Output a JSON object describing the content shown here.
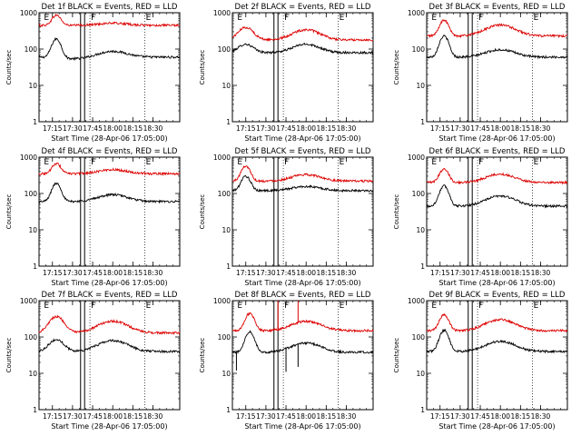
{
  "chart_data": [
    {
      "type": "line",
      "title": "Det 1f BLACK = Events, RED = LLD",
      "ylabel": "Counts/sec",
      "xlabel": "Start Time (28-Apr-06 17:05:00)",
      "yscale": "log",
      "ylim": [
        1,
        1000
      ],
      "xlim_minutes": [
        0,
        105
      ],
      "x_ticks_minutes": [
        10,
        25,
        40,
        55,
        70,
        85
      ],
      "x_tick_labels": [
        "17:15",
        "17:30",
        "17:45",
        "18:00",
        "18:15",
        "18:30"
      ],
      "y_ticks": [
        1,
        10,
        100,
        1000
      ],
      "y_tick_labels": [
        "1",
        "10",
        "100",
        "1000"
      ],
      "markers": [
        {
          "label": "E",
          "minute": 3
        },
        {
          "label": "F",
          "minute": 38
        },
        {
          "label": "E",
          "minute": 79
        }
      ],
      "box_minutes": [
        31,
        34
      ],
      "series": [
        {
          "name": "Events",
          "color": "#000000",
          "base": 60,
          "bumps": [
            {
              "c": 13,
              "h": 3.3,
              "w": 3
            },
            {
              "c": 27,
              "h": 0.9,
              "w": 10
            },
            {
              "c": 55,
              "h": 1.45,
              "w": 10
            }
          ]
        },
        {
          "name": "LLD",
          "color": "#dd0000",
          "base": 450,
          "bumps": [
            {
              "c": 13,
              "h": 1.9,
              "w": 3
            },
            {
              "c": 27,
              "h": 1,
              "w": 10
            },
            {
              "c": 55,
              "h": 1.15,
              "w": 10
            }
          ]
        }
      ]
    },
    {
      "type": "line",
      "title": "Det 2f BLACK = Events, RED = LLD",
      "ylabel": "Counts/sec",
      "xlabel": "Start Time (28-Apr-06 17:05:00)",
      "yscale": "log",
      "ylim": [
        1,
        1000
      ],
      "xlim_minutes": [
        0,
        105
      ],
      "x_ticks_minutes": [
        10,
        25,
        40,
        55,
        70,
        85
      ],
      "x_tick_labels": [
        "17:15",
        "17:30",
        "17:45",
        "18:00",
        "18:15",
        "18:30"
      ],
      "y_ticks": [
        1,
        10,
        100,
        1000
      ],
      "y_tick_labels": [
        "1",
        "10",
        "100",
        "1000"
      ],
      "markers": [
        {
          "label": "E",
          "minute": 3
        },
        {
          "label": "F",
          "minute": 38
        },
        {
          "label": "E",
          "minute": 79
        }
      ],
      "box_minutes": [
        31,
        34
      ],
      "series": [
        {
          "name": "Events",
          "color": "#000000",
          "base": 80,
          "bumps": [
            {
              "c": 10,
              "h": 1.7,
              "w": 5
            },
            {
              "c": 55,
              "h": 1.7,
              "w": 9
            }
          ]
        },
        {
          "name": "LLD",
          "color": "#dd0000",
          "base": 180,
          "bumps": [
            {
              "c": 10,
              "h": 2.2,
              "w": 5
            },
            {
              "c": 55,
              "h": 1.9,
              "w": 9
            }
          ]
        }
      ]
    },
    {
      "type": "line",
      "title": "Det 3f BLACK = Events, RED = LLD",
      "ylabel": "Counts/sec",
      "xlabel": "Start Time (28-Apr-06 17:05:00)",
      "yscale": "log",
      "ylim": [
        1,
        1000
      ],
      "xlim_minutes": [
        0,
        105
      ],
      "x_ticks_minutes": [
        10,
        25,
        40,
        55,
        70,
        85
      ],
      "x_tick_labels": [
        "17:15",
        "17:30",
        "17:45",
        "18:00",
        "18:15",
        "18:30"
      ],
      "y_ticks": [
        1,
        10,
        100,
        1000
      ],
      "y_tick_labels": [
        "1",
        "10",
        "100",
        "1000"
      ],
      "markers": [
        {
          "label": "E",
          "minute": 3
        },
        {
          "label": "F",
          "minute": 38
        },
        {
          "label": "E",
          "minute": 79
        }
      ],
      "box_minutes": [
        31,
        34
      ],
      "series": [
        {
          "name": "Events",
          "color": "#000000",
          "base": 60,
          "bumps": [
            {
              "c": 13,
              "h": 3.8,
              "w": 3
            },
            {
              "c": 55,
              "h": 1.6,
              "w": 10
            }
          ]
        },
        {
          "name": "LLD",
          "color": "#dd0000",
          "base": 230,
          "bumps": [
            {
              "c": 13,
              "h": 2.7,
              "w": 3
            },
            {
              "c": 55,
              "h": 2,
              "w": 10
            }
          ]
        }
      ]
    },
    {
      "type": "line",
      "title": "Det 4f BLACK = Events, RED = LLD",
      "ylabel": "Counts/sec",
      "xlabel": "Start Time (28-Apr-06 17:05:00)",
      "yscale": "log",
      "ylim": [
        1,
        1000
      ],
      "xlim_minutes": [
        0,
        105
      ],
      "x_ticks_minutes": [
        10,
        25,
        40,
        55,
        70,
        85
      ],
      "x_tick_labels": [
        "17:15",
        "17:30",
        "17:45",
        "18:00",
        "18:15",
        "18:30"
      ],
      "y_ticks": [
        1,
        10,
        100,
        1000
      ],
      "y_tick_labels": [
        "1",
        "10",
        "100",
        "1000"
      ],
      "markers": [
        {
          "label": "E",
          "minute": 3
        },
        {
          "label": "F",
          "minute": 38
        },
        {
          "label": "E",
          "minute": 79
        }
      ],
      "box_minutes": [
        31,
        34
      ],
      "series": [
        {
          "name": "Events",
          "color": "#000000",
          "base": 60,
          "bumps": [
            {
              "c": 13,
              "h": 3.2,
              "w": 3
            },
            {
              "c": 55,
              "h": 1.55,
              "w": 10
            }
          ]
        },
        {
          "name": "LLD",
          "color": "#dd0000",
          "base": 350,
          "bumps": [
            {
              "c": 13,
              "h": 1.9,
              "w": 3
            },
            {
              "c": 55,
              "h": 1.3,
              "w": 10
            }
          ]
        }
      ]
    },
    {
      "type": "line",
      "title": "Det 5f BLACK = Events, RED = LLD",
      "ylabel": "Counts/sec",
      "xlabel": "Start Time (28-Apr-06 17:05:00)",
      "yscale": "log",
      "ylim": [
        1,
        1000
      ],
      "xlim_minutes": [
        0,
        105
      ],
      "x_ticks_minutes": [
        10,
        25,
        40,
        55,
        70,
        85
      ],
      "x_tick_labels": [
        "17:15",
        "17:30",
        "17:45",
        "18:00",
        "18:15",
        "18:30"
      ],
      "y_ticks": [
        1,
        10,
        100,
        1000
      ],
      "y_tick_labels": [
        "1",
        "10",
        "100",
        "1000"
      ],
      "markers": [
        {
          "label": "E",
          "minute": 3
        },
        {
          "label": "F",
          "minute": 38
        },
        {
          "label": "E",
          "minute": 79
        }
      ],
      "box_minutes": [
        31,
        34
      ],
      "series": [
        {
          "name": "Events",
          "color": "#000000",
          "base": 120,
          "bumps": [
            {
              "c": 10,
              "h": 2.5,
              "w": 3
            },
            {
              "c": 55,
              "h": 1.3,
              "w": 10
            }
          ]
        },
        {
          "name": "LLD",
          "color": "#dd0000",
          "base": 220,
          "bumps": [
            {
              "c": 10,
              "h": 2.6,
              "w": 3
            },
            {
              "c": 55,
              "h": 1.5,
              "w": 10
            }
          ]
        }
      ]
    },
    {
      "type": "line",
      "title": "Det 6f BLACK = Events, RED = LLD",
      "ylabel": "Counts/sec",
      "xlabel": "Start Time (28-Apr-06 17:05:00)",
      "yscale": "log",
      "ylim": [
        1,
        1000
      ],
      "xlim_minutes": [
        0,
        105
      ],
      "x_ticks_minutes": [
        10,
        25,
        40,
        55,
        70,
        85
      ],
      "x_tick_labels": [
        "17:15",
        "17:30",
        "17:45",
        "18:00",
        "18:15",
        "18:30"
      ],
      "y_ticks": [
        1,
        10,
        100,
        1000
      ],
      "y_tick_labels": [
        "1",
        "10",
        "100",
        "1000"
      ],
      "markers": [
        {
          "label": "E",
          "minute": 3
        },
        {
          "label": "F",
          "minute": 38
        },
        {
          "label": "E",
          "minute": 79
        }
      ],
      "box_minutes": [
        31,
        34
      ],
      "series": [
        {
          "name": "Events",
          "color": "#000000",
          "base": 45,
          "bumps": [
            {
              "c": 13,
              "h": 3.6,
              "w": 3
            },
            {
              "c": 55,
              "h": 1.9,
              "w": 10
            }
          ]
        },
        {
          "name": "LLD",
          "color": "#dd0000",
          "base": 200,
          "bumps": [
            {
              "c": 13,
              "h": 2.4,
              "w": 3
            },
            {
              "c": 55,
              "h": 1.7,
              "w": 10
            }
          ]
        }
      ]
    },
    {
      "type": "line",
      "title": "Det 7f BLACK = Events, RED = LLD",
      "ylabel": "Counts/sec",
      "xlabel": "Start Time (28-Apr-06 17:05:00)",
      "yscale": "log",
      "ylim": [
        1,
        1000
      ],
      "xlim_minutes": [
        0,
        105
      ],
      "x_ticks_minutes": [
        10,
        25,
        40,
        55,
        70,
        85
      ],
      "x_tick_labels": [
        "17:15",
        "17:30",
        "17:45",
        "18:00",
        "18:15",
        "18:30"
      ],
      "y_ticks": [
        1,
        10,
        100,
        1000
      ],
      "y_tick_labels": [
        "1",
        "10",
        "100",
        "1000"
      ],
      "markers": [
        {
          "label": "E",
          "minute": 3
        },
        {
          "label": "F",
          "minute": 38
        },
        {
          "label": "E",
          "minute": 79
        }
      ],
      "box_minutes": [
        31,
        34
      ],
      "series": [
        {
          "name": "Events",
          "color": "#000000",
          "base": 40,
          "bumps": [
            {
              "c": 13,
              "h": 2.1,
              "w": 5
            },
            {
              "c": 55,
              "h": 2,
              "w": 10
            }
          ]
        },
        {
          "name": "LLD",
          "color": "#dd0000",
          "base": 130,
          "bumps": [
            {
              "c": 13,
              "h": 2.8,
              "w": 5
            },
            {
              "c": 55,
              "h": 2.1,
              "w": 10
            }
          ]
        }
      ]
    },
    {
      "type": "line",
      "title": "Det 8f BLACK = Events, RED = LLD",
      "ylabel": "Counts/sec",
      "xlabel": "Start Time (28-Apr-06 17:05:00)",
      "yscale": "log",
      "ylim": [
        1,
        1000
      ],
      "xlim_minutes": [
        0,
        105
      ],
      "x_ticks_minutes": [
        10,
        25,
        40,
        55,
        70,
        85
      ],
      "x_tick_labels": [
        "17:15",
        "17:30",
        "17:45",
        "18:00",
        "18:15",
        "18:30"
      ],
      "y_ticks": [
        1,
        10,
        100,
        1000
      ],
      "y_tick_labels": [
        "1",
        "10",
        "100",
        "1000"
      ],
      "markers": [
        {
          "label": "E",
          "minute": 3
        },
        {
          "label": "F",
          "minute": 38
        },
        {
          "label": "E",
          "minute": 79
        }
      ],
      "box_minutes": [
        31,
        34
      ],
      "series": [
        {
          "name": "Events",
          "color": "#000000",
          "base": 38,
          "bumps": [
            {
              "c": 13,
              "h": 3.7,
              "w": 3
            },
            {
              "c": 55,
              "h": 1.8,
              "w": 10
            }
          ],
          "spikes": [
            {
              "m": 3,
              "v": 12
            },
            {
              "m": 40,
              "v": 11
            },
            {
              "m": 49,
              "v": 15
            }
          ]
        },
        {
          "name": "LLD",
          "color": "#dd0000",
          "base": 150,
          "bumps": [
            {
              "c": 13,
              "h": 3,
              "w": 3
            },
            {
              "c": 55,
              "h": 1.8,
              "w": 10
            }
          ],
          "spikes": [
            {
              "m": 34,
              "v": 1000
            },
            {
              "m": 49,
              "v": 1000
            }
          ]
        }
      ]
    },
    {
      "type": "line",
      "title": "Det 9f BLACK = Events, RED = LLD",
      "ylabel": "Counts/sec",
      "xlabel": "Start Time (28-Apr-06 17:05:00)",
      "yscale": "log",
      "ylim": [
        1,
        1000
      ],
      "xlim_minutes": [
        0,
        105
      ],
      "x_ticks_minutes": [
        10,
        25,
        40,
        55,
        70,
        85
      ],
      "x_tick_labels": [
        "17:15",
        "17:30",
        "17:45",
        "18:00",
        "18:15",
        "18:30"
      ],
      "y_ticks": [
        1,
        10,
        100,
        1000
      ],
      "y_tick_labels": [
        "1",
        "10",
        "100",
        "1000"
      ],
      "markers": [
        {
          "label": "E",
          "minute": 3
        },
        {
          "label": "F",
          "minute": 38
        },
        {
          "label": "E",
          "minute": 79
        }
      ],
      "box_minutes": [
        31,
        34
      ],
      "series": [
        {
          "name": "Events",
          "color": "#000000",
          "base": 40,
          "bumps": [
            {
              "c": 13,
              "h": 3.8,
              "w": 3
            },
            {
              "c": 55,
              "h": 1.9,
              "w": 10
            }
          ]
        },
        {
          "name": "LLD",
          "color": "#dd0000",
          "base": 150,
          "bumps": [
            {
              "c": 13,
              "h": 2.7,
              "w": 3
            },
            {
              "c": 55,
              "h": 2,
              "w": 10
            }
          ]
        }
      ]
    }
  ]
}
